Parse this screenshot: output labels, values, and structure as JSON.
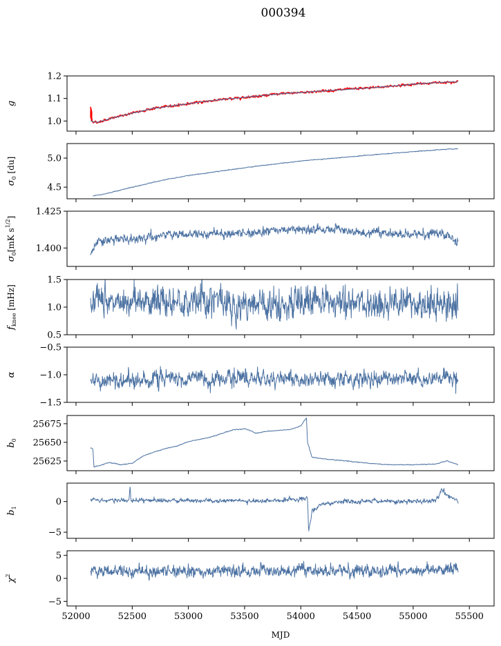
{
  "suptitle": "000394",
  "xlabel": "MJD",
  "chart_data": {
    "type": "line",
    "x_ticks": [
      52000,
      52500,
      53000,
      53500,
      54000,
      54500,
      55000,
      55500
    ],
    "x_tick_labels": [
      "52000",
      "52500",
      "53000",
      "53500",
      "54000",
      "54500",
      "55000",
      "55500"
    ],
    "xlim": [
      51920,
      55720
    ],
    "x_range": [
      52130,
      55400
    ],
    "panels": [
      {
        "id": "g",
        "ylabel_base": "g",
        "ylabel_sub": "",
        "ylabel_sup": "",
        "ylabel_suffix": "",
        "ylim": [
          0.955,
          1.2
        ],
        "yticks": [
          1.0,
          1.1,
          1.2
        ],
        "ytick_labels": [
          "1.0",
          "1.1",
          "1.2"
        ],
        "series": [
          {
            "color": "#ff0000",
            "width": 1.6,
            "noise": 0.003,
            "x": [
              52130,
              52135,
              52145,
              52160,
              52200,
              52300,
              52500,
              52700,
              52900,
              53200,
              53500,
              53800,
              54100,
              54400,
              54700,
              55000,
              55200,
              55400
            ],
            "y": [
              1.06,
              1.02,
              1.0,
              0.995,
              0.995,
              1.01,
              1.035,
              1.057,
              1.07,
              1.09,
              1.105,
              1.12,
              1.13,
              1.14,
              1.15,
              1.163,
              1.17,
              1.175
            ]
          },
          {
            "color": "#4c72a2",
            "width": 1.0,
            "noise": 0.001,
            "x": [
              52130,
              52160,
              52200,
              52300,
              52500,
              52700,
              52900,
              53200,
              53500,
              53800,
              54100,
              54400,
              54700,
              55000,
              55200,
              55400
            ],
            "y": [
              1.0,
              0.996,
              0.995,
              1.01,
              1.035,
              1.057,
              1.07,
              1.09,
              1.105,
              1.12,
              1.13,
              1.14,
              1.15,
              1.163,
              1.17,
              1.175
            ]
          }
        ]
      },
      {
        "id": "sigma0-du",
        "ylabel_base": "σ",
        "ylabel_sub": "0",
        "ylabel_sup": "",
        "ylabel_suffix": " [du]",
        "ylim": [
          4.3,
          5.25
        ],
        "yticks": [
          4.5,
          5.0
        ],
        "ytick_labels": [
          "4.5",
          "5.0"
        ],
        "series": [
          {
            "color": "#4c72a2",
            "width": 1.0,
            "noise": 0.004,
            "x": [
              52150,
              52250,
              52500,
              52800,
              53000,
              53300,
              53600,
              54000,
              54300,
              54600,
              55000,
              55200,
              55400
            ],
            "y": [
              4.35,
              4.38,
              4.5,
              4.63,
              4.7,
              4.78,
              4.86,
              4.95,
              5.0,
              5.05,
              5.11,
              5.14,
              5.16
            ]
          }
        ]
      },
      {
        "id": "sigma0-mks",
        "ylabel_base": "σ",
        "ylabel_sub": "0",
        "ylabel_sup": "1/2",
        "ylabel_suffix": "[mK s",
        "ylabel_close": "]",
        "ylim": [
          1.3875,
          1.425
        ],
        "yticks": [
          1.4,
          1.425
        ],
        "ytick_labels": [
          "1.400",
          "1.425"
        ],
        "series": [
          {
            "color": "#4c72a2",
            "width": 1.0,
            "noise": 0.0018,
            "x": [
              52130,
              52150,
              52200,
              52400,
              52600,
              52800,
              53000,
              53200,
              53400,
              53600,
              53800,
              54000,
              54200,
              54400,
              54600,
              54800,
              55000,
              55200,
              55300,
              55400
            ],
            "y": [
              1.395,
              1.398,
              1.405,
              1.406,
              1.406,
              1.409,
              1.409,
              1.41,
              1.41,
              1.41,
              1.413,
              1.412,
              1.413,
              1.412,
              1.41,
              1.41,
              1.409,
              1.41,
              1.409,
              1.404
            ]
          }
        ]
      },
      {
        "id": "fknee",
        "ylabel_base": "f",
        "ylabel_sub": "knee",
        "ylabel_sup": "",
        "ylabel_suffix": " [mHz]",
        "ylim": [
          0.5,
          1.5
        ],
        "yticks": [
          0.5,
          1.0,
          1.5
        ],
        "ytick_labels": [
          "0.5",
          "1.0",
          "1.5"
        ],
        "series": [
          {
            "color": "#4c72a2",
            "width": 1.0,
            "noise": 0.17,
            "x": [
              52130,
              52500,
              53000,
              53500,
              54000,
              54500,
              55000,
              55400
            ],
            "y": [
              1.12,
              1.1,
              1.08,
              1.07,
              1.06,
              1.07,
              1.08,
              1.0
            ]
          }
        ]
      },
      {
        "id": "alpha",
        "ylabel_base": "α",
        "ylabel_sub": "",
        "ylabel_sup": "",
        "ylabel_suffix": "",
        "ylim": [
          -1.5,
          -0.5
        ],
        "yticks": [
          -1.5,
          -1.0,
          -0.5
        ],
        "ytick_labels": [
          "−1.5",
          "−1.0",
          "−0.5"
        ],
        "series": [
          {
            "color": "#4c72a2",
            "width": 1.0,
            "noise": 0.09,
            "x": [
              52130,
              52500,
              53000,
              53500,
              54000,
              54500,
              55000,
              55400
            ],
            "y": [
              -1.1,
              -1.08,
              -1.08,
              -1.07,
              -1.08,
              -1.07,
              -1.07,
              -1.08
            ]
          }
        ]
      },
      {
        "id": "b0",
        "ylabel_base": "b",
        "ylabel_sub": "0",
        "ylabel_sup": "",
        "ylabel_suffix": "",
        "ylim": [
          25612,
          25686
        ],
        "yticks": [
          25625,
          25650,
          25675
        ],
        "ytick_labels": [
          "25625",
          "25650",
          "25675"
        ],
        "series": [
          {
            "color": "#4c72a2",
            "width": 1.0,
            "noise": 0.3,
            "x": [
              52130,
              52150,
              52160,
              52300,
              52400,
              52500,
              52600,
              52800,
              52900,
              53000,
              53200,
              53400,
              53500,
              53550,
              53600,
              53700,
              53900,
              54000,
              54050,
              54060,
              54100,
              54200,
              54400,
              54600,
              54800,
              55000,
              55200,
              55300,
              55400
            ],
            "y": [
              25643,
              25641,
              25617,
              25623,
              25620,
              25622,
              25632,
              25642,
              25645,
              25651,
              25657,
              25667,
              25668,
              25666,
              25662,
              25665,
              25667,
              25672,
              25683,
              25650,
              25630,
              25628,
              25625,
              25622,
              25620,
              25620,
              25621,
              25625,
              25620
            ]
          }
        ]
      },
      {
        "id": "b1",
        "ylabel_base": "b",
        "ylabel_sub": "1",
        "ylabel_sup": "",
        "ylabel_suffix": "",
        "ylim": [
          -6,
          3
        ],
        "yticks": [
          -5,
          0
        ],
        "ytick_labels": [
          "−5",
          "0"
        ],
        "series": [
          {
            "color": "#4c72a2",
            "width": 1.0,
            "noise": 0.22,
            "x": [
              52130,
              52470,
              52480,
              52490,
              53000,
              53500,
              53600,
              54000,
              54060,
              54070,
              54100,
              54200,
              54400,
              55000,
              55200,
              55250,
              55400
            ],
            "y": [
              0.2,
              0.2,
              2.8,
              0.2,
              0.2,
              0.1,
              0.1,
              0.4,
              0.5,
              -5.0,
              -1.5,
              -0.4,
              0.0,
              0.0,
              0.1,
              1.7,
              0.0
            ]
          }
        ]
      },
      {
        "id": "chi2",
        "ylabel_base": "χ",
        "ylabel_sub": "",
        "ylabel_sup": "2",
        "ylabel_suffix": "",
        "ylim": [
          -6,
          6
        ],
        "yticks": [
          -5,
          0,
          5
        ],
        "ytick_labels": [
          "−5",
          "0",
          "5"
        ],
        "series": [
          {
            "color": "#4c72a2",
            "width": 1.0,
            "noise": 0.8,
            "x": [
              52130,
              52500,
              53000,
              53500,
              54000,
              54500,
              55000,
              55400
            ],
            "y": [
              1.4,
              1.6,
              1.5,
              1.6,
              1.7,
              1.6,
              1.7,
              2.0
            ]
          }
        ]
      }
    ]
  }
}
